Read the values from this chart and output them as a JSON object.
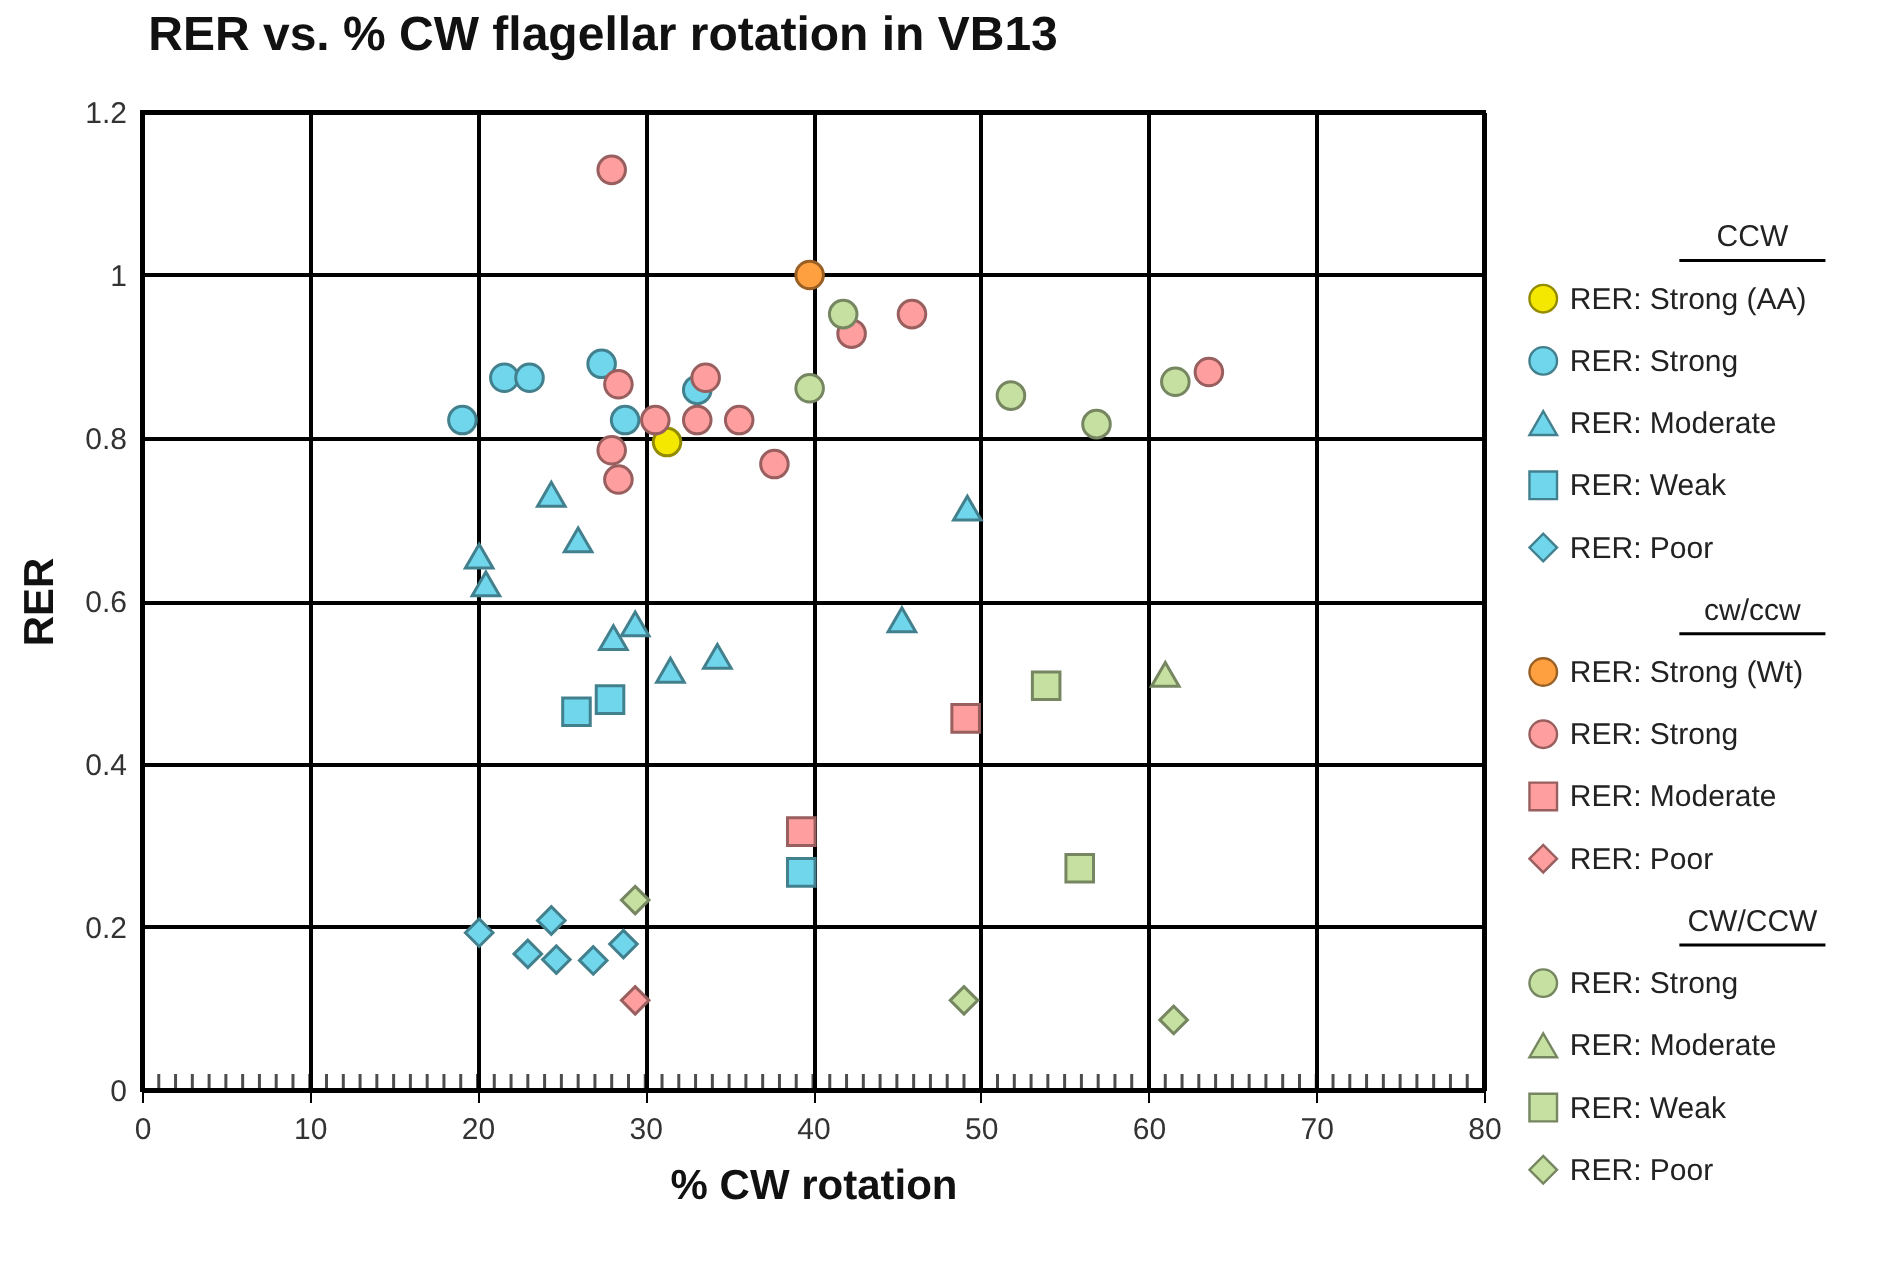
{
  "chart_data": {
    "type": "scatter",
    "title": "RER vs. % CW flagellar rotation in VB13",
    "xlabel": "% CW rotation",
    "ylabel": "RER",
    "xlim": [
      0,
      80
    ],
    "xticks": [
      0,
      10,
      20,
      30,
      40,
      50,
      60,
      70,
      80
    ],
    "ylim": [
      0,
      1.2
    ],
    "yticks": [
      0,
      0.2,
      0.4,
      0.6,
      0.8,
      1,
      1.2
    ],
    "grid": true,
    "legend": "right",
    "annotations": [
      "CCW",
      "cw/ccw",
      "CW/CCW"
    ],
    "series": [
      {
        "name": "RER: Strong  (AA)",
        "color": "#f5e800",
        "marker": "circle",
        "x": [
          31.3
        ],
        "values": [
          0.795
        ]
      },
      {
        "name": "RER: Strong",
        "color": "#6fd6ec",
        "marker": "circle",
        "x": [
          19.1,
          21.6,
          23.1,
          27.4,
          28.8,
          33.1
        ],
        "values": [
          0.822,
          0.874,
          0.874,
          0.891,
          0.822,
          0.859
        ]
      },
      {
        "name": "RER: Moderate",
        "color": "#6fd6ec",
        "marker": "triangle",
        "x": [
          24.4,
          20.1,
          20.5,
          26.0,
          28.1,
          29.4,
          31.5,
          34.3,
          45.3,
          49.2
        ],
        "values": [
          0.731,
          0.655,
          0.621,
          0.675,
          0.555,
          0.572,
          0.515,
          0.532,
          0.577,
          0.714
        ]
      },
      {
        "name": "RER: Weak",
        "color": "#6fd6ec",
        "marker": "square",
        "x": [
          25.9,
          27.9,
          39.3
        ],
        "values": [
          0.464,
          0.479,
          0.267
        ]
      },
      {
        "name": "RER: Poor",
        "color": "#6fd6ec",
        "marker": "diamond",
        "x": [
          20.1,
          24.4,
          23.0,
          24.7,
          26.9,
          28.7
        ],
        "values": [
          0.193,
          0.208,
          0.167,
          0.16,
          0.159,
          0.179
        ]
      },
      {
        "name": "RER: Strong (Wt)",
        "color": "#ffa040",
        "marker": "circle",
        "x": [
          39.8
        ],
        "values": [
          1.0
        ]
      },
      {
        "name": "RER: Strong",
        "color": "#ff9e9e",
        "marker": "circle",
        "x": [
          28.0,
          28.4,
          33.6,
          30.6,
          33.1,
          35.6,
          28.0,
          28.4,
          37.7,
          42.3,
          45.9,
          63.6
        ],
        "values": [
          1.129,
          0.866,
          0.874,
          0.822,
          0.822,
          0.822,
          0.785,
          0.749,
          0.768,
          0.928,
          0.952,
          0.881
        ]
      },
      {
        "name": "RER: Moderate",
        "color": "#ff9e9e",
        "marker": "square",
        "x": [
          39.3,
          49.1
        ],
        "values": [
          0.317,
          0.456
        ]
      },
      {
        "name": "RER: Poor",
        "color": "#ff9e9e",
        "marker": "diamond",
        "x": [
          29.4
        ],
        "values": [
          0.11
        ]
      },
      {
        "name": "RER: Strong",
        "color": "#c5e0a0",
        "marker": "circle",
        "x": [
          41.8,
          39.8,
          51.8,
          56.9,
          61.6
        ],
        "values": [
          0.952,
          0.861,
          0.852,
          0.817,
          0.869
        ]
      },
      {
        "name": "RER: Moderate",
        "color": "#c5e0a0",
        "marker": "triangle",
        "x": [
          61.0
        ],
        "values": [
          0.51
        ]
      },
      {
        "name": "RER: Weak",
        "color": "#c5e0a0",
        "marker": "square",
        "x": [
          53.9,
          55.9
        ],
        "values": [
          0.496,
          0.272
        ]
      },
      {
        "name": "RER: Poor",
        "color": "#c5e0a0",
        "marker": "diamond",
        "x": [
          29.4,
          49.0,
          61.5
        ],
        "values": [
          0.233,
          0.11,
          0.086
        ]
      }
    ]
  }
}
